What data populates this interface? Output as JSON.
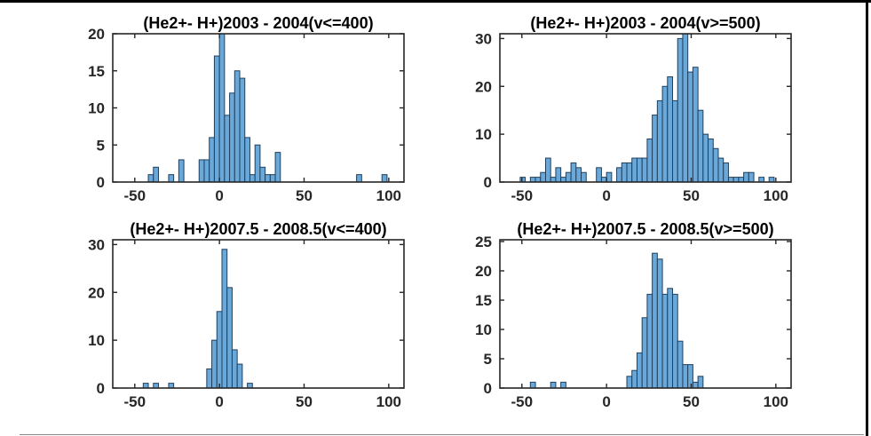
{
  "figure": {
    "background": "#ffffff",
    "border_color": "#000000",
    "bar_fill": "#69a8d8",
    "bar_edge": "#20405e",
    "axis_color": "#262626",
    "tick_label_color": "#262626",
    "title_color": "#000000"
  },
  "chart_data": [
    {
      "type": "bar",
      "title": "(He2+- H+)2003 - 2004(v<=400)",
      "xlabel": "",
      "ylabel": "",
      "xlim": [
        -63,
        109
      ],
      "ylim": [
        0,
        20
      ],
      "xticks": [
        -50,
        0,
        50,
        100
      ],
      "yticks": [
        0,
        5,
        10,
        15,
        20
      ],
      "grid": false,
      "legend": null,
      "bin_width": 3,
      "bins": [
        [
          -42,
          1
        ],
        [
          -39,
          2
        ],
        [
          -30,
          1
        ],
        [
          -24,
          3
        ],
        [
          -12,
          3
        ],
        [
          -9,
          3
        ],
        [
          -6,
          6
        ],
        [
          -3,
          17
        ],
        [
          0,
          20
        ],
        [
          3,
          9
        ],
        [
          6,
          12
        ],
        [
          9,
          15
        ],
        [
          12,
          14
        ],
        [
          15,
          6
        ],
        [
          18,
          1
        ],
        [
          21,
          5
        ],
        [
          24,
          2
        ],
        [
          27,
          1
        ],
        [
          30,
          1
        ],
        [
          33,
          4
        ],
        [
          81,
          1
        ],
        [
          96,
          1
        ]
      ]
    },
    {
      "type": "bar",
      "title": "(He2+- H+)2003 - 2004(v>=500)",
      "xlabel": "",
      "ylabel": "",
      "xlim": [
        -63,
        109
      ],
      "ylim": [
        0,
        31
      ],
      "xticks": [
        -50,
        0,
        50,
        100
      ],
      "yticks": [
        0,
        10,
        20,
        30
      ],
      "grid": false,
      "legend": null,
      "bin_width": 3,
      "bins": [
        [
          -51,
          1
        ],
        [
          -45,
          1
        ],
        [
          -42,
          1
        ],
        [
          -39,
          2
        ],
        [
          -36,
          5
        ],
        [
          -33,
          1
        ],
        [
          -30,
          3
        ],
        [
          -27,
          1
        ],
        [
          -24,
          2
        ],
        [
          -21,
          4
        ],
        [
          -18,
          3
        ],
        [
          -15,
          2
        ],
        [
          -6,
          3
        ],
        [
          -3,
          1
        ],
        [
          0,
          2
        ],
        [
          6,
          3
        ],
        [
          9,
          4
        ],
        [
          12,
          4
        ],
        [
          15,
          5
        ],
        [
          18,
          5
        ],
        [
          21,
          5
        ],
        [
          24,
          9
        ],
        [
          27,
          14
        ],
        [
          30,
          17
        ],
        [
          33,
          20
        ],
        [
          36,
          22
        ],
        [
          39,
          17
        ],
        [
          42,
          30
        ],
        [
          45,
          31
        ],
        [
          48,
          23
        ],
        [
          51,
          24
        ],
        [
          54,
          15
        ],
        [
          57,
          10
        ],
        [
          60,
          9
        ],
        [
          63,
          7
        ],
        [
          66,
          5
        ],
        [
          69,
          4
        ],
        [
          72,
          1
        ],
        [
          75,
          1
        ],
        [
          78,
          1
        ],
        [
          81,
          2
        ],
        [
          84,
          2
        ],
        [
          90,
          1
        ],
        [
          96,
          1
        ]
      ]
    },
    {
      "type": "bar",
      "title": "(He2+- H+)2007.5 - 2008.5(v<=400)",
      "xlabel": "",
      "ylabel": "",
      "xlim": [
        -63,
        109
      ],
      "ylim": [
        0,
        31
      ],
      "xticks": [
        -50,
        0,
        50,
        100
      ],
      "yticks": [
        0,
        10,
        20,
        30
      ],
      "grid": false,
      "legend": null,
      "bin_width": 3,
      "bins": [
        [
          -45,
          1
        ],
        [
          -39,
          1
        ],
        [
          -30,
          1
        ],
        [
          -7.5,
          4
        ],
        [
          -4.5,
          10
        ],
        [
          -1.5,
          16
        ],
        [
          1.5,
          29
        ],
        [
          4.5,
          21
        ],
        [
          7.5,
          8
        ],
        [
          10.5,
          5
        ],
        [
          16.5,
          1
        ]
      ]
    },
    {
      "type": "bar",
      "title": "(He2+- H+)2007.5 - 2008.5(v>=500)",
      "xlabel": "",
      "ylabel": "",
      "xlim": [
        -63,
        109
      ],
      "ylim": [
        0,
        25.3
      ],
      "xticks": [
        -50,
        0,
        50,
        100
      ],
      "yticks": [
        0,
        5,
        10,
        15,
        20,
        25
      ],
      "grid": false,
      "legend": null,
      "bin_width": 3,
      "bins": [
        [
          -45,
          1
        ],
        [
          -33,
          1
        ],
        [
          -27,
          1
        ],
        [
          12,
          2
        ],
        [
          15,
          3
        ],
        [
          18,
          6
        ],
        [
          21,
          12
        ],
        [
          24,
          16
        ],
        [
          27,
          23
        ],
        [
          30,
          22
        ],
        [
          33,
          16
        ],
        [
          36,
          17
        ],
        [
          39,
          16
        ],
        [
          42,
          8
        ],
        [
          45,
          4
        ],
        [
          48,
          4
        ],
        [
          51,
          1
        ],
        [
          54,
          2
        ]
      ]
    }
  ]
}
